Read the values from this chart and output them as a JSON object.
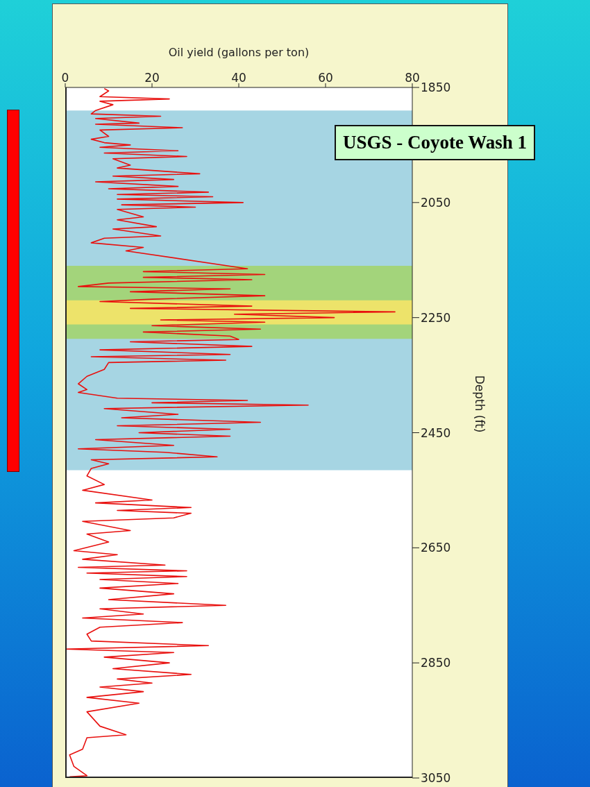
{
  "chart_data": {
    "type": "line",
    "xlabel": "Oil yield (gallons per ton)",
    "ylabel": "Depth (ft)",
    "xlim": [
      0,
      80
    ],
    "xticks": [
      0,
      20,
      40,
      60,
      80
    ],
    "ylim": [
      3050,
      1850
    ],
    "yticks": [
      1850,
      2050,
      2250,
      2450,
      2650,
      2850,
      3050
    ],
    "grid": false,
    "legend": false,
    "marker": "none",
    "line_style": "solid",
    "annotations": [
      "USGS - Coyote Wash 1"
    ],
    "bands": [
      {
        "axis": "y",
        "from": 1890,
        "to": 2515,
        "color": "#a6d5e3"
      },
      {
        "axis": "y",
        "from": 2160,
        "to": 2287,
        "color": "#a3d47b"
      },
      {
        "axis": "y",
        "from": 2220,
        "to": 2262,
        "color": "#ede36a"
      }
    ],
    "series": [
      {
        "color": "#e8100e",
        "x": [
          9,
          10,
          8,
          24,
          8,
          11,
          7,
          6,
          22,
          7,
          17,
          7,
          27,
          8,
          10,
          6,
          9,
          15,
          8,
          26,
          9,
          28,
          11,
          15,
          12,
          31,
          11,
          25,
          7,
          26,
          10,
          33,
          12,
          34,
          12,
          41,
          13,
          30,
          12,
          18,
          12,
          21,
          11,
          22,
          9,
          6,
          18,
          14,
          42,
          18,
          46,
          18,
          43,
          10,
          3,
          38,
          15,
          46,
          20,
          8,
          43,
          15,
          76,
          39,
          62,
          22,
          46,
          20,
          45,
          18,
          38,
          40,
          15,
          43,
          8,
          38,
          6,
          37,
          10,
          9,
          5,
          3,
          5,
          3,
          12,
          42,
          20,
          56,
          9,
          26,
          13,
          45,
          12,
          38,
          17,
          38,
          7,
          25,
          3,
          23,
          35,
          6,
          10,
          6,
          5,
          9,
          4,
          20,
          7,
          29,
          12,
          29,
          25,
          4,
          15,
          5,
          10,
          2,
          12,
          4,
          23,
          3,
          28,
          5,
          28,
          8,
          26,
          8,
          25,
          10,
          37,
          8,
          18,
          4,
          27,
          8,
          5,
          6,
          33,
          0,
          25,
          9,
          24,
          11,
          29,
          12,
          20,
          8,
          18,
          5,
          17,
          5,
          8,
          14,
          5,
          4,
          1,
          2,
          5,
          1
        ],
        "values": [
          1852,
          1856,
          1866,
          1870,
          1874,
          1880,
          1890,
          1896,
          1900,
          1904,
          1912,
          1914,
          1920,
          1924,
          1935,
          1940,
          1946,
          1950,
          1954,
          1960,
          1964,
          1970,
          1974,
          1985,
          1990,
          2000,
          2004,
          2010,
          2014,
          2022,
          2026,
          2032,
          2036,
          2040,
          2044,
          2050,
          2054,
          2058,
          2062,
          2075,
          2080,
          2092,
          2096,
          2108,
          2112,
          2120,
          2128,
          2134,
          2165,
          2170,
          2175,
          2180,
          2184,
          2190,
          2196,
          2200,
          2205,
          2212,
          2218,
          2222,
          2230,
          2234,
          2240,
          2244,
          2250,
          2254,
          2258,
          2264,
          2270,
          2275,
          2282,
          2288,
          2292,
          2300,
          2306,
          2314,
          2318,
          2324,
          2328,
          2340,
          2352,
          2365,
          2375,
          2380,
          2390,
          2394,
          2398,
          2402,
          2408,
          2418,
          2424,
          2432,
          2438,
          2444,
          2450,
          2456,
          2462,
          2472,
          2478,
          2484,
          2492,
          2497,
          2504,
          2512,
          2525,
          2540,
          2550,
          2567,
          2572,
          2580,
          2585,
          2590,
          2598,
          2604,
          2620,
          2626,
          2640,
          2655,
          2662,
          2670,
          2680,
          2684,
          2690,
          2694,
          2700,
          2705,
          2712,
          2720,
          2730,
          2740,
          2750,
          2756,
          2765,
          2772,
          2780,
          2788,
          2800,
          2812,
          2820,
          2826,
          2832,
          2840,
          2850,
          2860,
          2870,
          2878,
          2885,
          2892,
          2900,
          2910,
          2920,
          2935,
          2960,
          2975,
          2980,
          3000,
          3010,
          3030,
          3046,
          3048
        ]
      }
    ]
  }
}
